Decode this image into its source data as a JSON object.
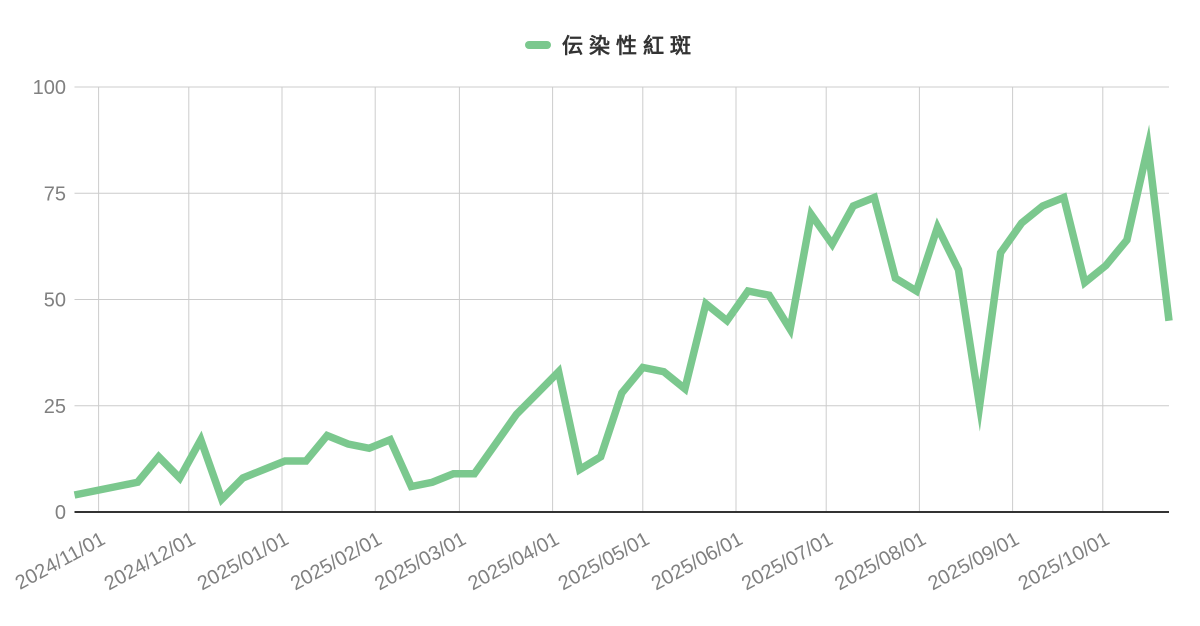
{
  "legend": {
    "series_label": "伝染性紅斑",
    "swatch_color": "#7bc88e"
  },
  "colors": {
    "line": "#7bc88e",
    "gridline": "#cccccc",
    "axis_line": "#333333",
    "tick_label": "#808080",
    "legend_text": "#333333",
    "background": "#ffffff"
  },
  "chart_data": {
    "type": "line",
    "title": "伝染性紅斑",
    "legend_position": "top",
    "grid": true,
    "x_interval": "weekly",
    "ylim": [
      0,
      100
    ],
    "y_ticks": [
      0,
      25,
      50,
      75,
      100
    ],
    "y_tick_labels": [
      "0",
      "25",
      "50",
      "75",
      "100"
    ],
    "x_tick_labels": [
      "2024/11/01",
      "2024/12/01",
      "2025/01/01",
      "2025/02/01",
      "2025/03/01",
      "2025/04/01",
      "2025/05/01",
      "2025/06/01",
      "2025/07/01",
      "2025/08/01",
      "2025/09/01",
      "2025/10/01"
    ],
    "series": [
      {
        "name": "伝染性紅斑",
        "color": "#7bc88e",
        "values": [
          4,
          5,
          6,
          7,
          13,
          8,
          17,
          3,
          8,
          10,
          12,
          12,
          18,
          16,
          15,
          17,
          6,
          7,
          9,
          9,
          16,
          23,
          28,
          33,
          10,
          13,
          28,
          34,
          33,
          29,
          49,
          45,
          52,
          51,
          43,
          70,
          63,
          72,
          74,
          55,
          52,
          67,
          57,
          25,
          61,
          68,
          72,
          74,
          54,
          58,
          64,
          86,
          45
        ]
      }
    ]
  }
}
